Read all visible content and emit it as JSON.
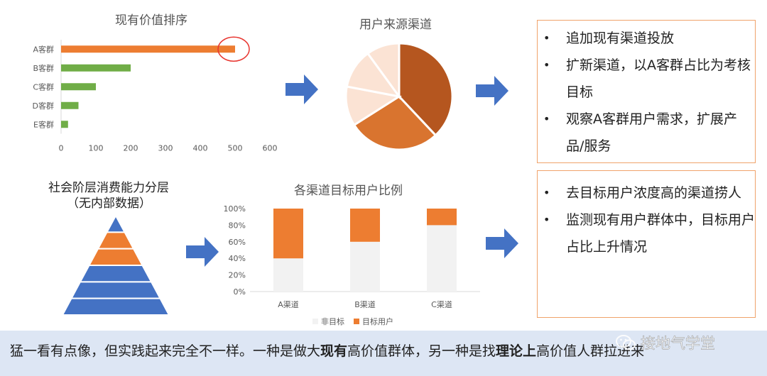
{
  "ranking": {
    "title": "现有价值排序",
    "chart_data": {
      "type": "bar",
      "orientation": "horizontal",
      "categories": [
        "A客群",
        "B客群",
        "C客群",
        "D客群",
        "E客群"
      ],
      "values": [
        500,
        200,
        100,
        50,
        20
      ],
      "xticks": [
        "0",
        "100",
        "200",
        "300",
        "400",
        "500",
        "600"
      ],
      "xlim": [
        0,
        600
      ],
      "colors": [
        "#ed7d31",
        "#70ad47",
        "#70ad47",
        "#70ad47",
        "#70ad47"
      ],
      "highlight_category": "A客群",
      "highlight_color": "#e8352f"
    }
  },
  "channels": {
    "title": "用户来源渠道",
    "chart_data": {
      "type": "pie",
      "values": [
        38,
        28,
        12,
        12,
        10
      ],
      "colors": [
        "#b5561f",
        "#d9742f",
        "#fbe3d4",
        "#fbe3d4",
        "#fbe3d4"
      ]
    }
  },
  "box_top": {
    "items": [
      "追加现有渠道投放",
      "扩新渠道，以A客群占比为考核目标",
      "观察A客群用户需求，扩展产品/服务"
    ]
  },
  "pyramid": {
    "title_line1": "社会阶层消费能力分层",
    "title_line2": "（无内部数据）",
    "levels": 6,
    "colors": [
      "#4472c4",
      "#ed7d31",
      "#ed7d31",
      "#4472c4",
      "#4472c4",
      "#4472c4"
    ]
  },
  "stacked": {
    "title": "各渠道目标用户比例",
    "chart_data": {
      "type": "bar",
      "stacked": true,
      "categories": [
        "A渠道",
        "B渠道",
        "C渠道"
      ],
      "series": [
        {
          "name": "非目标",
          "values": [
            40,
            60,
            80
          ],
          "color": "#f2f2f2"
        },
        {
          "name": "目标用户",
          "values": [
            60,
            40,
            20
          ],
          "color": "#ed7d31"
        }
      ],
      "yticks": [
        "0%",
        "20%",
        "40%",
        "60%",
        "80%",
        "100%"
      ],
      "ylim": [
        0,
        100
      ],
      "legend": "bottom"
    }
  },
  "box_bottom": {
    "items": [
      "去目标用户浓度高的渠道捞人",
      "监测现有用户群体中，目标用户占比上升情况"
    ]
  },
  "caption": {
    "part1": "猛一看有点像，但实践起来完全不一样。一种是做大",
    "bold1": "现有",
    "part2": "高价值群体，另一种是找",
    "bold2": "理论上",
    "part3": "高价值人群拉进来"
  },
  "watermark": {
    "text": "接地气学堂",
    "icon": "wechat-icon"
  },
  "arrow_color": "#4472c4"
}
